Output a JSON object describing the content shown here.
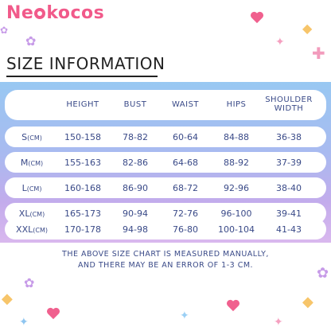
{
  "brand": {
    "name_prefix": "Ne",
    "name_suffix": "kocos"
  },
  "heading": "SIZE INFORMATION",
  "table": {
    "headers": [
      "HEIGHT",
      "BUST",
      "WAIST",
      "HIPS",
      "SHOULDER WIDTH"
    ],
    "header_shoulder_line1": "SHOULDER",
    "header_shoulder_line2": "WIDTH",
    "rows": [
      {
        "size": "S",
        "unit": "(CM)",
        "height": "150-158",
        "bust": "78-82",
        "waist": "60-64",
        "hips": "84-88",
        "shoulder": "36-38"
      },
      {
        "size": "M",
        "unit": "(CM)",
        "height": "155-163",
        "bust": "82-86",
        "waist": "64-68",
        "hips": "88-92",
        "shoulder": "37-39"
      },
      {
        "size": "L",
        "unit": "(CM)",
        "height": "160-168",
        "bust": "86-90",
        "waist": "68-72",
        "hips": "92-96",
        "shoulder": "38-40"
      },
      {
        "size": "XL",
        "unit": "(CM)",
        "height": "165-173",
        "bust": "90-94",
        "waist": "72-76",
        "hips": "96-100",
        "shoulder": "39-41"
      },
      {
        "size": "XXL",
        "unit": "(CM)",
        "height": "170-178",
        "bust": "94-98",
        "waist": "76-80",
        "hips": "100-104",
        "shoulder": "41-43"
      }
    ]
  },
  "note_line1": "THE ABOVE SIZE CHART IS MEASURED MANUALLY,",
  "note_line2": "AND THERE MAY BE AN ERROR OF 1-3 CM.",
  "colors": {
    "brand_pink": "#f15a8a",
    "table_text": "#3a4a88",
    "gradient_top": "#98c8f2",
    "gradient_bottom": "#d9b8ee"
  }
}
